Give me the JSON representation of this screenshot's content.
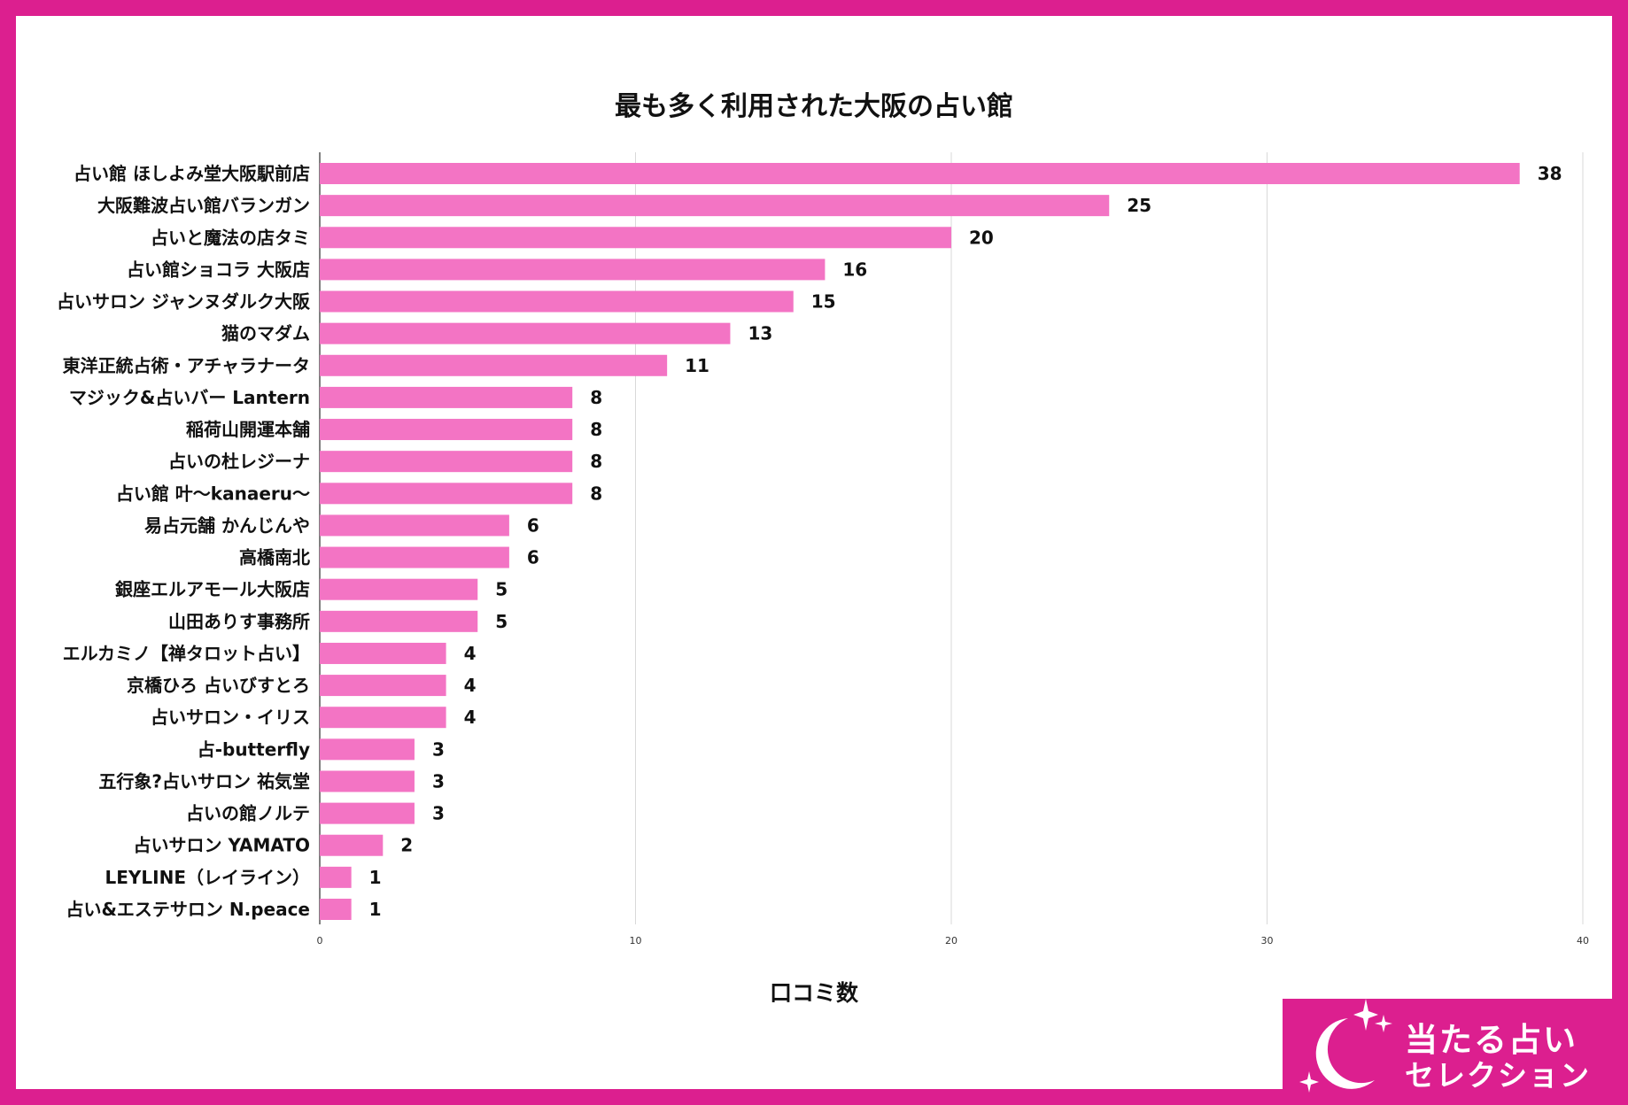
{
  "chart_data": {
    "type": "bar",
    "orientation": "horizontal",
    "title": "最も多く利用された大阪の占い館",
    "xlabel": "口コミ数",
    "ylabel": "",
    "xlim": [
      0,
      40
    ],
    "x_ticks": [
      0,
      10,
      20,
      30,
      40
    ],
    "grid": true,
    "bar_color": "#f374c4",
    "data_labels": true,
    "categories": [
      "占い館 ほしよみ堂大阪駅前店",
      "大阪難波占い館バランガン",
      "占いと魔法の店タミ",
      "占い館ショコラ 大阪店",
      "占いサロン ジャンヌダルク大阪",
      "猫のマダム",
      "東洋正統占術・アチャラナータ",
      "マジック&占いバー Lantern",
      "稲荷山開運本舗",
      "占いの杜レジーナ",
      "占い館 叶〜kanaeru〜",
      "易占元舗 かんじんや",
      "高橋南北",
      "銀座エルアモール大阪店",
      "山田ありす事務所",
      "エルカミノ【禅タロット占い】",
      "京橋ひろ 占いびすとろ",
      "占いサロン・イリス",
      "占-butterfly",
      "五行象?占いサロン 祐気堂",
      "占いの館ノルテ",
      "占いサロン YAMATO",
      "LEYLINE（レイライン）",
      "占い&エステサロン N.peace"
    ],
    "values": [
      38,
      25,
      20,
      16,
      15,
      13,
      11,
      8,
      8,
      8,
      8,
      6,
      6,
      5,
      5,
      4,
      4,
      4,
      3,
      3,
      3,
      2,
      1,
      1
    ]
  },
  "brand": {
    "line1": "当たる占い",
    "line2": "セレクション",
    "color": "#dc1f8f",
    "icon": "crescent-moon-sparkles-icon"
  }
}
